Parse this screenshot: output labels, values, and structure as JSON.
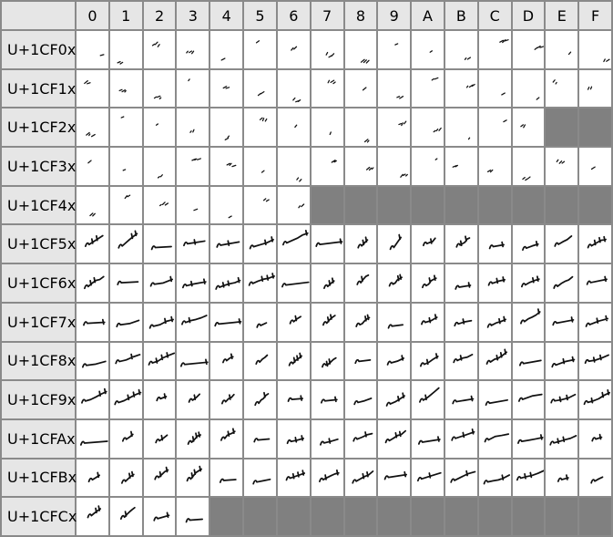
{
  "columns": [
    "0",
    "1",
    "2",
    "3",
    "4",
    "5",
    "6",
    "7",
    "8",
    "9",
    "A",
    "B",
    "C",
    "D",
    "E",
    "F"
  ],
  "colors": {
    "header_bg": "#e6e6e6",
    "unassigned": "#808080",
    "grid": "#8a8a8a"
  },
  "rows": [
    {
      "label": "U+1CF0x",
      "cells": [
        "𜼀",
        "𜼁",
        "𜼂",
        "𜼃",
        "𜼄",
        "𜼅",
        "𜼆",
        "𜼇",
        "𜼈",
        "𜼉",
        "𜼊",
        "𜼋",
        "𜼌",
        "𜼍",
        "𜼎",
        "𜼏"
      ]
    },
    {
      "label": "U+1CF1x",
      "cells": [
        "𜼐",
        "𜼑",
        "𜼒",
        "𜼓",
        "𜼔",
        "𜼕",
        "𜼖",
        "𜼗",
        "𜼘",
        "𜼙",
        "𜼚",
        "𜼛",
        "𜼜",
        "𜼝",
        "𜼞",
        "𜼟"
      ]
    },
    {
      "label": "U+1CF2x",
      "cells": [
        "𜼠",
        "𜼡",
        "𜼢",
        "𜼣",
        "𜼤",
        "𜼥",
        "𜼦",
        "𜼧",
        "𜼨",
        "𜼩",
        "𜼪",
        "𜼫",
        "𜼬",
        "𜼭",
        null,
        null
      ]
    },
    {
      "label": "U+1CF3x",
      "cells": [
        "𜼰",
        "𜼱",
        "𜼲",
        "𜼳",
        "𜼴",
        "𜼵",
        "𜼶",
        "𜼷",
        "𜼸",
        "𜼹",
        "𜼺",
        "𜼻",
        "𜼼",
        "𜼽",
        "𜼾",
        "𜼿"
      ]
    },
    {
      "label": "U+1CF4x",
      "cells": [
        "𜽀",
        "𜽁",
        "𜽂",
        "𜽃",
        "𜽄",
        "𜽅",
        "𜽆",
        null,
        null,
        null,
        null,
        null,
        null,
        null,
        null,
        null
      ]
    },
    {
      "label": "U+1CF5x",
      "cells": [
        "𜽐",
        "𜽑",
        "𜽒",
        "𜽓",
        "𜽔",
        "𜽕",
        "𜽖",
        "𜽗",
        "𜽘",
        "𜽙",
        "𜽚",
        "𜽛",
        "𜽜",
        "𜽝",
        "𜽞",
        "𜽟"
      ]
    },
    {
      "label": "U+1CF6x",
      "cells": [
        "𜽠",
        "𜽡",
        "𜽢",
        "𜽣",
        "𜽤",
        "𜽥",
        "𜽦",
        "𜽧",
        "𜽨",
        "𜽩",
        "𜽪",
        "𜽫",
        "𜽬",
        "𜽭",
        "𜽮",
        "𜽯"
      ]
    },
    {
      "label": "U+1CF7x",
      "cells": [
        "𜽰",
        "𜽱",
        "𜽲",
        "𜽳",
        "𜽴",
        "𜽵",
        "𜽶",
        "𜽷",
        "𜽸",
        "𜽹",
        "𜽺",
        "𜽻",
        "𜽼",
        "𜽽",
        "𜽾",
        "𜽿"
      ]
    },
    {
      "label": "U+1CF8x",
      "cells": [
        "𜾀",
        "𜾁",
        "𜾂",
        "𜾃",
        "𜾄",
        "𜾅",
        "𜾆",
        "𜾇",
        "𜾈",
        "𜾉",
        "𜾊",
        "𜾋",
        "𜾌",
        "𜾍",
        "𜾎",
        "𜾏"
      ]
    },
    {
      "label": "U+1CF9x",
      "cells": [
        "𜾐",
        "𜾑",
        "𜾒",
        "𜾓",
        "𜾔",
        "𜾕",
        "𜾖",
        "𜾗",
        "𜾘",
        "𜾙",
        "𜾚",
        "𜾛",
        "𜾜",
        "𜾝",
        "𜾞",
        "𜾟"
      ]
    },
    {
      "label": "U+1CFAx",
      "cells": [
        "𜾠",
        "𜾡",
        "𜾢",
        "𜾣",
        "𜾤",
        "𜾥",
        "𜾦",
        "𜾧",
        "𜾨",
        "𜾩",
        "𜾪",
        "𜾫",
        "𜾬",
        "𜾭",
        "𜾮",
        "𜾯"
      ]
    },
    {
      "label": "U+1CFBx",
      "cells": [
        "𜾰",
        "𜾱",
        "𜾲",
        "𜾳",
        "𜾴",
        "𜾵",
        "𜾶",
        "𜾷",
        "𜾸",
        "𜾹",
        "𜾺",
        "𜾻",
        "𜾼",
        "𜾽",
        "𜾾",
        "𜾿"
      ]
    },
    {
      "label": "U+1CFCx",
      "cells": [
        "𜿀",
        "𜿁",
        "𜿂",
        "𜿃",
        null,
        null,
        null,
        null,
        null,
        null,
        null,
        null,
        null,
        null,
        null,
        null
      ]
    }
  ]
}
